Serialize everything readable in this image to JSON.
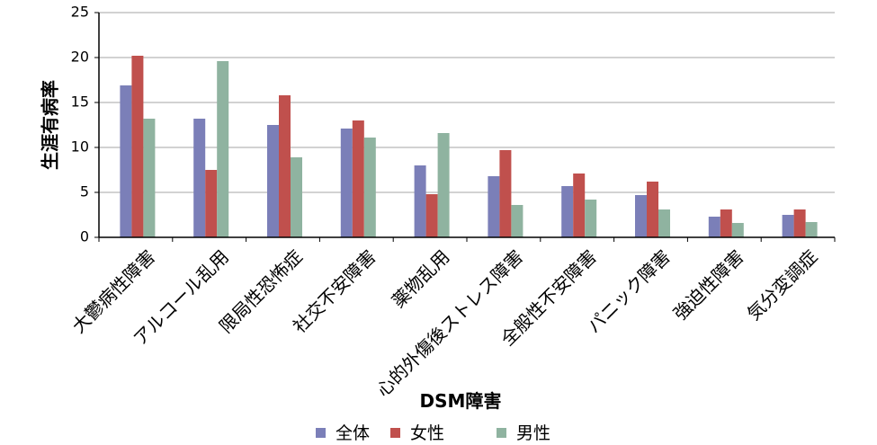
{
  "chart_data": {
    "type": "bar",
    "title": "",
    "xlabel": "DSM障害",
    "ylabel": "生涯有病率",
    "ylim": [
      0,
      25
    ],
    "yticks": [
      0,
      5,
      10,
      15,
      20,
      25
    ],
    "grid": true,
    "legend_position": "bottom",
    "categories": [
      "大鬱病性障害",
      "アルコール乱用",
      "限局性恐怖症",
      "社交不安障害",
      "薬物乱用",
      "心的外傷後ストレス障害",
      "全般性不安障害",
      "パニック障害",
      "強迫性障害",
      "気分変調症"
    ],
    "series": [
      {
        "name": "全体",
        "color": "#7b7fb8",
        "values": [
          16.9,
          13.2,
          12.5,
          12.1,
          8.0,
          6.8,
          5.7,
          4.7,
          2.3,
          2.5
        ]
      },
      {
        "name": "女性",
        "color": "#c0504d",
        "values": [
          20.2,
          7.5,
          15.8,
          13.0,
          4.8,
          9.7,
          7.1,
          6.2,
          3.1,
          3.1
        ]
      },
      {
        "name": "男性",
        "color": "#8fb3a0",
        "values": [
          13.2,
          19.6,
          8.9,
          11.1,
          11.6,
          3.6,
          4.2,
          3.1,
          1.6,
          1.7
        ]
      }
    ]
  }
}
